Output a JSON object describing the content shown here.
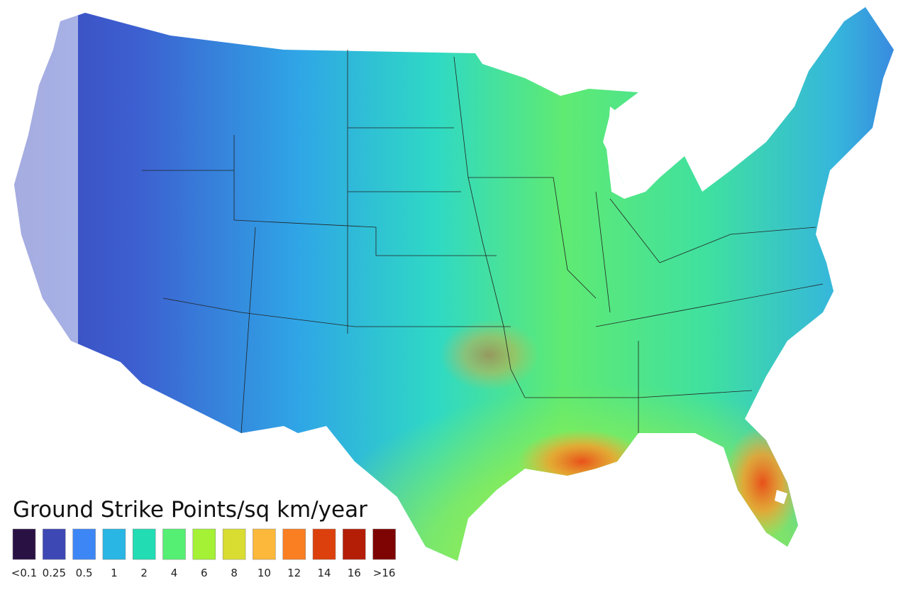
{
  "legend": {
    "title": "Ground Strike Points/sq km/year",
    "items": [
      {
        "label": "<0.1",
        "color": "#2a1144"
      },
      {
        "label": "0.25",
        "color": "#3d48b5"
      },
      {
        "label": "0.5",
        "color": "#3d86f5"
      },
      {
        "label": "1",
        "color": "#29b6e4"
      },
      {
        "label": "2",
        "color": "#22dcb4"
      },
      {
        "label": "4",
        "color": "#55ef73"
      },
      {
        "label": "6",
        "color": "#a4f135"
      },
      {
        "label": "8",
        "color": "#d9dd32"
      },
      {
        "label": "10",
        "color": "#fbb83a"
      },
      {
        "label": "12",
        "color": "#fa7e22"
      },
      {
        "label": "14",
        "color": "#dc400c"
      },
      {
        "label": "16",
        "color": "#b41e07"
      },
      {
        "label": ">16",
        "color": "#7d0402"
      }
    ]
  }
}
